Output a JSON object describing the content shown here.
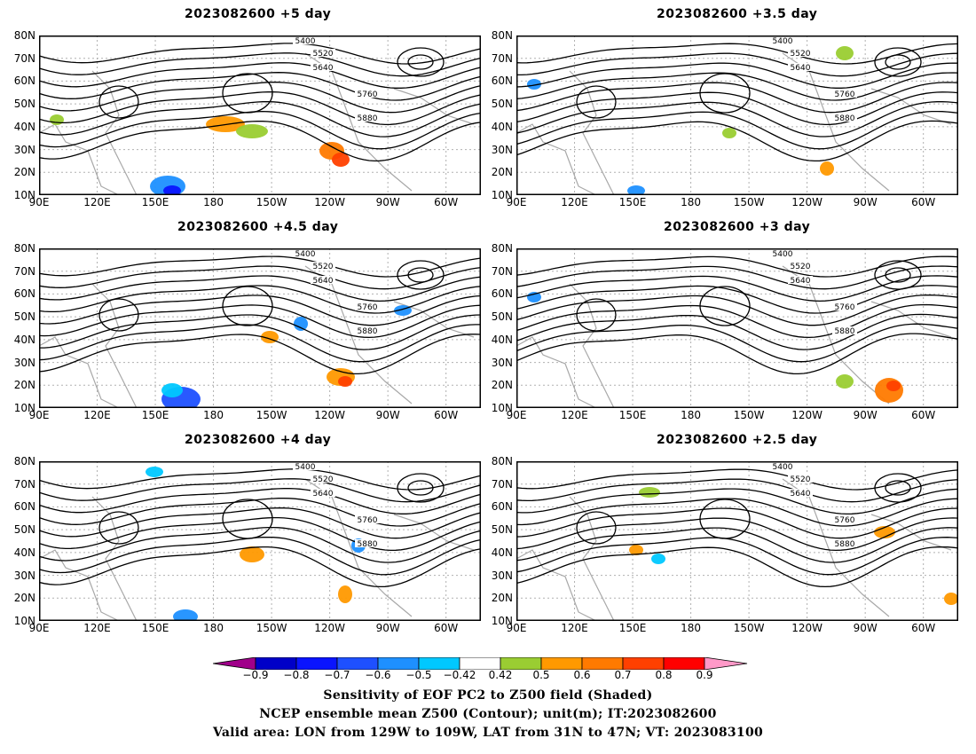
{
  "panels": [
    {
      "title": "2023082600  +5 day"
    },
    {
      "title": "2023082600  +3.5 day"
    },
    {
      "title": "2023082600  +4.5 day"
    },
    {
      "title": "2023082600  +3 day"
    },
    {
      "title": "2023082600  +4 day"
    },
    {
      "title": "2023082600  +2.5 day"
    }
  ],
  "axes": {
    "lat_labels": [
      "80N",
      "70N",
      "60N",
      "50N",
      "40N",
      "30N",
      "20N",
      "10N"
    ],
    "lon_labels": [
      "90E",
      "120E",
      "150E",
      "180",
      "150W",
      "120W",
      "90W",
      "60W"
    ]
  },
  "contour_labels": [
    "5400",
    "5520",
    "5640",
    "5760",
    "5880"
  ],
  "colorbar": {
    "ticks": [
      "−0.9",
      "−0.8",
      "−0.7",
      "−0.6",
      "−0.5",
      "−0.42",
      "0.42",
      "0.5",
      "0.6",
      "0.7",
      "0.8",
      "0.9"
    ],
    "colors": [
      "#a0008a",
      "#0000c8",
      "#0a14ff",
      "#1e50ff",
      "#1e90ff",
      "#00c8ff",
      "#ffffff",
      "#9acd32",
      "#ff9900",
      "#ff7a00",
      "#ff4000",
      "#ff0000",
      "#ff99c8"
    ]
  },
  "caption": {
    "line1": "Sensitivity of EOF PC2 to Z500 field (Shaded)",
    "line2": "NCEP ensemble mean Z500 (Contour); unit(m); IT:2023082600",
    "line3": "Valid area: LON from 129W to 109W, LAT from 31N to 47N; VT: 2023083100"
  }
}
